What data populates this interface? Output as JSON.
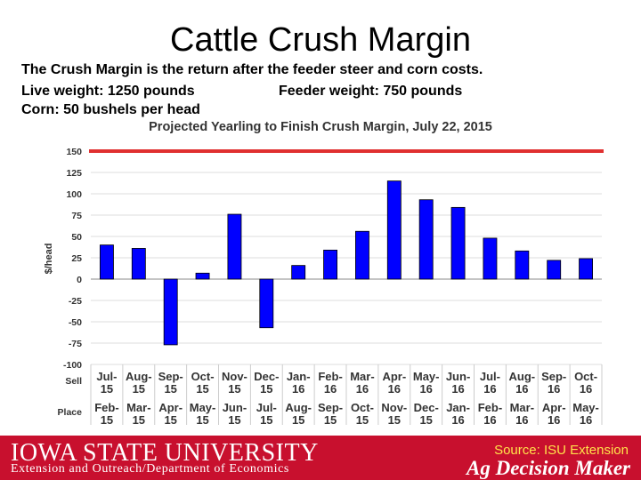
{
  "slide": {
    "title": "Cattle Crush Margin",
    "desc_line1": "The Crush Margin is the return after the feeder steer and corn costs.",
    "desc_line2a": "Live weight:  1250 pounds",
    "desc_line2b": "Feeder weight:  750 pounds",
    "desc_line3": "Corn:  50 bushels per head"
  },
  "footer": {
    "logo_text": "IOWA STATE UNIVERSITY",
    "subtitle": "Extension and Outreach/Department of Economics",
    "source": "Source: ISU Extension",
    "brand": "Ag Decision Maker"
  },
  "colors": {
    "bar": "#0000ff",
    "red_line": "#e03030",
    "footer": "#c8102e"
  },
  "chart_data": {
    "type": "bar",
    "title": "Projected Yearling to Finish Crush Margin, July 22, 2015",
    "ylabel": "$/head",
    "ylim": [
      -100,
      150
    ],
    "yticks": [
      150,
      125,
      100,
      75,
      50,
      25,
      0,
      -25,
      -50,
      -75,
      -100
    ],
    "row_label_sell": "Sell",
    "row_label_place": "Place",
    "sell": [
      [
        "Jul-",
        "15"
      ],
      [
        "Aug-",
        "15"
      ],
      [
        "Sep-",
        "15"
      ],
      [
        "Oct-",
        "15"
      ],
      [
        "Nov-",
        "15"
      ],
      [
        "Dec-",
        "15"
      ],
      [
        "Jan-",
        "16"
      ],
      [
        "Feb-",
        "16"
      ],
      [
        "Mar-",
        "16"
      ],
      [
        "Apr-",
        "16"
      ],
      [
        "May-",
        "16"
      ],
      [
        "Jun-",
        "16"
      ],
      [
        "Jul-",
        "16"
      ],
      [
        "Aug-",
        "16"
      ],
      [
        "Sep-",
        "16"
      ],
      [
        "Oct-",
        "16"
      ]
    ],
    "place": [
      [
        "Feb-",
        "15"
      ],
      [
        "Mar-",
        "15"
      ],
      [
        "Apr-",
        "15"
      ],
      [
        "May-",
        "15"
      ],
      [
        "Jun-",
        "15"
      ],
      [
        "Jul-",
        "15"
      ],
      [
        "Aug-",
        "15"
      ],
      [
        "Sep-",
        "15"
      ],
      [
        "Oct-",
        "15"
      ],
      [
        "Nov-",
        "15"
      ],
      [
        "Dec-",
        "15"
      ],
      [
        "Jan-",
        "16"
      ],
      [
        "Feb-",
        "16"
      ],
      [
        "Mar-",
        "16"
      ],
      [
        "Apr-",
        "16"
      ],
      [
        "May-",
        "16"
      ]
    ],
    "values": [
      40,
      36,
      -77,
      7,
      76,
      -57,
      16,
      34,
      56,
      115,
      93,
      84,
      48,
      33,
      22,
      24
    ],
    "reference_line": 150
  }
}
